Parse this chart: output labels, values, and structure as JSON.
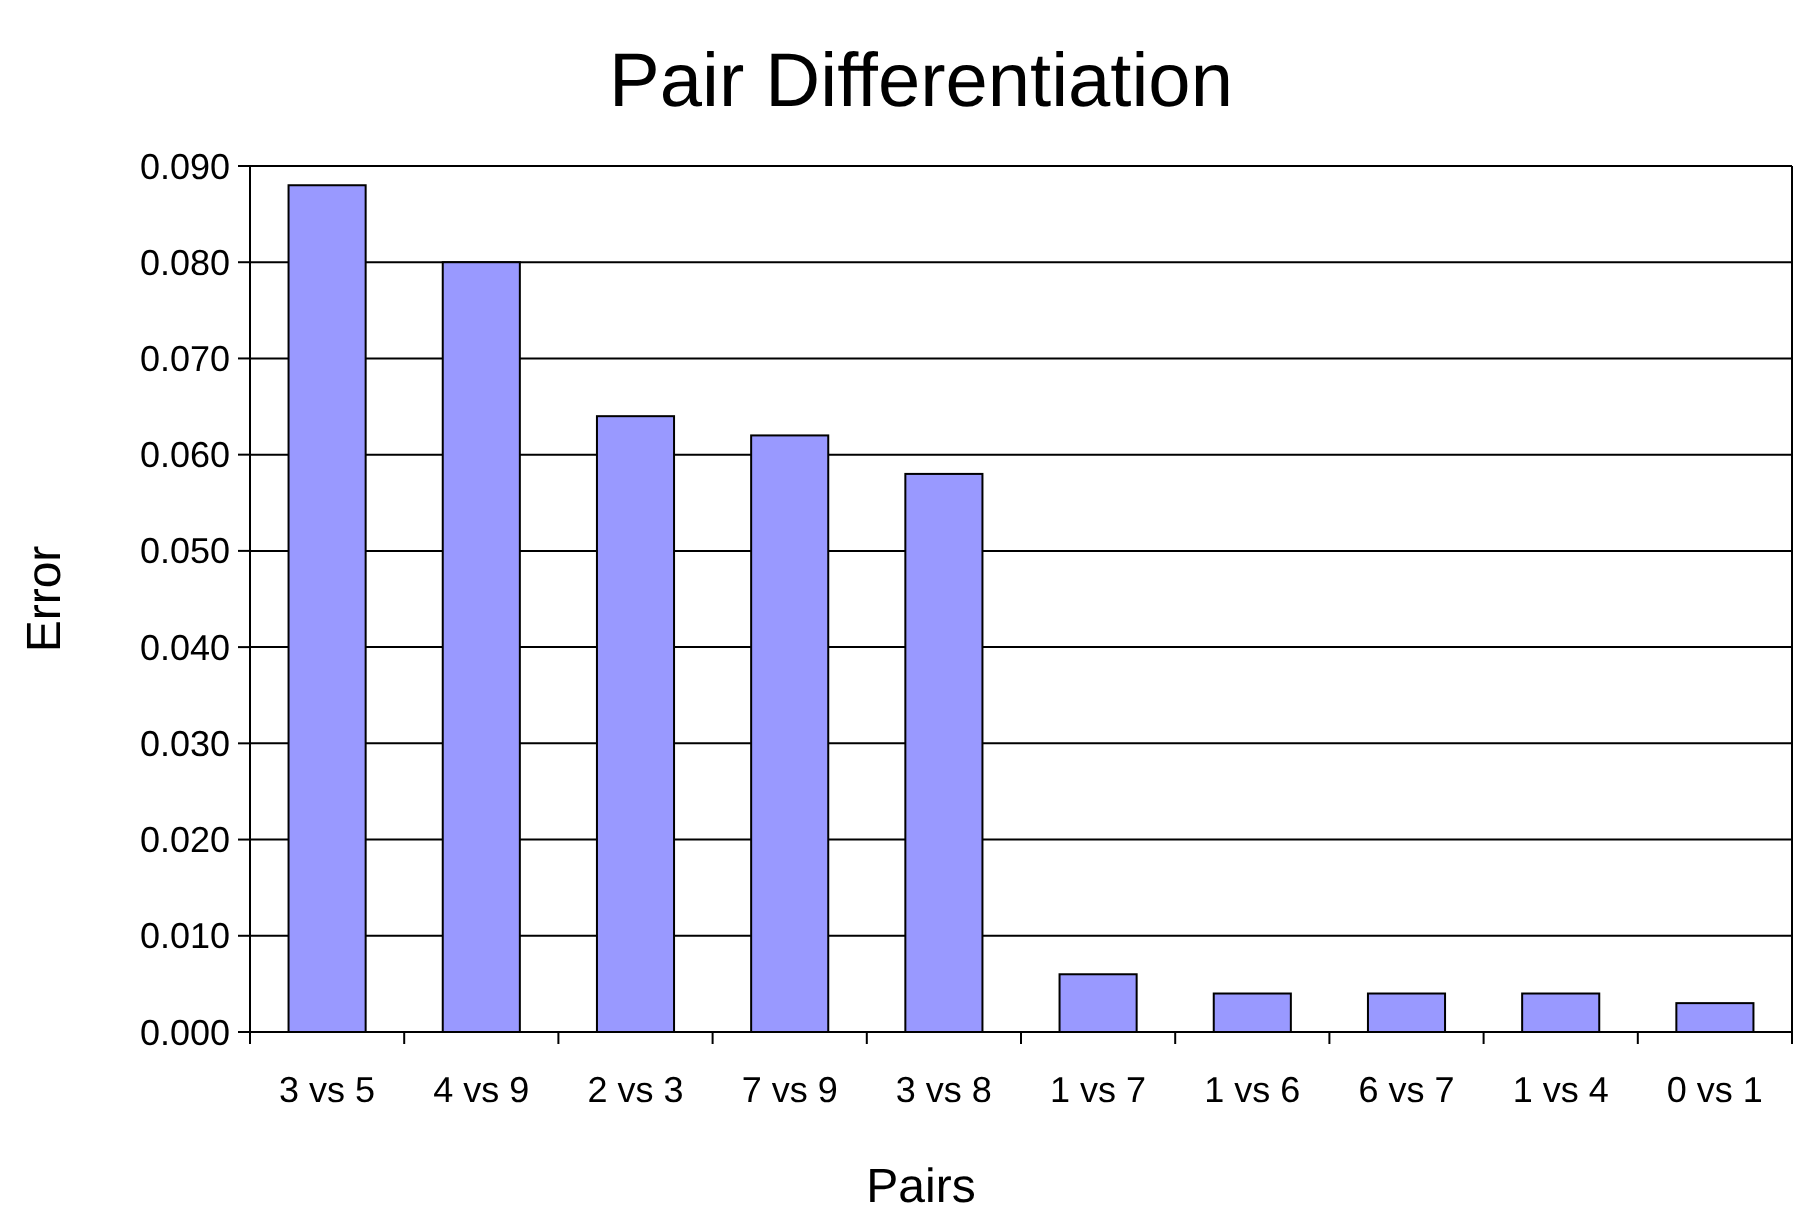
{
  "chart_data": {
    "type": "bar",
    "title": "Pair Differentiation",
    "xlabel": "Pairs",
    "ylabel": "Error",
    "categories": [
      "3 vs 5",
      "4 vs 9",
      "2 vs 3",
      "7 vs 9",
      "3 vs 8",
      "1 vs 7",
      "1 vs 6",
      "6 vs 7",
      "1 vs 4",
      "0 vs 1"
    ],
    "values": [
      0.088,
      0.08,
      0.064,
      0.062,
      0.058,
      0.006,
      0.004,
      0.004,
      0.004,
      0.003
    ],
    "color": "#9999ff",
    "ylim": [
      0,
      0.09
    ],
    "yticks": [
      {
        "value": 0,
        "label": "0.000"
      },
      {
        "value": 0.01,
        "label": "0.010"
      },
      {
        "value": 0.02,
        "label": "0.020"
      },
      {
        "value": 0.03,
        "label": "0.030"
      },
      {
        "value": 0.04,
        "label": "0.040"
      },
      {
        "value": 0.05,
        "label": "0.050"
      },
      {
        "value": 0.06,
        "label": "0.060"
      },
      {
        "value": 0.07,
        "label": "0.070"
      },
      {
        "value": 0.08,
        "label": "0.080"
      },
      {
        "value": 0.09,
        "label": "0.090"
      }
    ],
    "grid": "y"
  }
}
